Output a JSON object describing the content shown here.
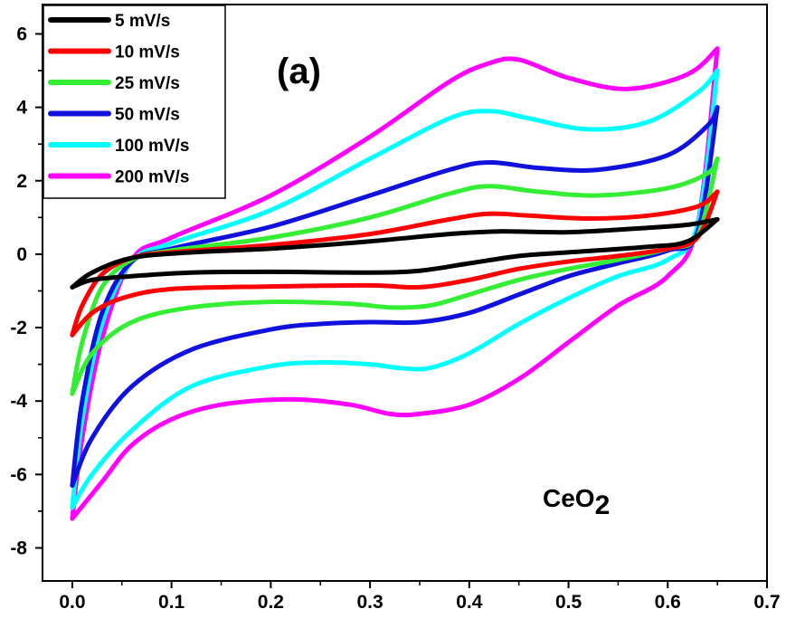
{
  "chart_data": {
    "type": "line",
    "title": "",
    "xlabel": "",
    "ylabel": "",
    "xlim": [
      -0.03,
      0.7
    ],
    "ylim": [
      -8.9,
      6.8
    ],
    "xticks": [
      "0.0",
      "0.1",
      "0.2",
      "0.3",
      "0.4",
      "0.5",
      "0.6",
      "0.7"
    ],
    "yticks": [
      "6",
      "4",
      "2",
      "0",
      "-2",
      "-4",
      "-6",
      "-8"
    ],
    "legend_position": "top-left",
    "grid": false,
    "annotations": [
      {
        "text": "(a)"
      },
      {
        "text": "CeO",
        "subscript": "2"
      }
    ],
    "series": [
      {
        "name": "5 mV/s",
        "color": "#000000",
        "anodic": {
          "x": [
            0.0,
            0.02,
            0.06,
            0.12,
            0.2,
            0.3,
            0.38,
            0.43,
            0.5,
            0.58,
            0.62,
            0.65
          ],
          "y": [
            -0.9,
            -0.5,
            -0.1,
            0.05,
            0.15,
            0.35,
            0.55,
            0.62,
            0.6,
            0.72,
            0.8,
            0.95
          ]
        },
        "cathodic": {
          "x": [
            0.65,
            0.62,
            0.58,
            0.5,
            0.45,
            0.4,
            0.35,
            0.3,
            0.2,
            0.12,
            0.06,
            0.02,
            0.0
          ],
          "y": [
            0.95,
            0.35,
            0.2,
            0.05,
            -0.05,
            -0.25,
            -0.45,
            -0.5,
            -0.48,
            -0.5,
            -0.6,
            -0.7,
            -0.9
          ]
        }
      },
      {
        "name": "10 mV/s",
        "color": "#ff0000",
        "anodic": {
          "x": [
            0.0,
            0.01,
            0.03,
            0.06,
            0.1,
            0.2,
            0.3,
            0.38,
            0.42,
            0.46,
            0.52,
            0.58,
            0.63,
            0.65
          ],
          "y": [
            -2.2,
            -1.4,
            -0.55,
            -0.1,
            0.05,
            0.25,
            0.55,
            0.95,
            1.1,
            1.05,
            0.97,
            1.05,
            1.3,
            1.7
          ]
        },
        "cathodic": {
          "x": [
            0.65,
            0.63,
            0.6,
            0.55,
            0.5,
            0.45,
            0.4,
            0.35,
            0.3,
            0.2,
            0.1,
            0.05,
            0.02,
            0.0
          ],
          "y": [
            1.7,
            0.45,
            0.15,
            -0.05,
            -0.2,
            -0.4,
            -0.7,
            -0.9,
            -0.85,
            -0.88,
            -0.95,
            -1.2,
            -1.6,
            -2.2
          ]
        }
      },
      {
        "name": "25 mV/s",
        "color": "#33ee33",
        "anodic": {
          "x": [
            0.0,
            0.01,
            0.03,
            0.06,
            0.1,
            0.2,
            0.3,
            0.38,
            0.42,
            0.47,
            0.53,
            0.6,
            0.64,
            0.65
          ],
          "y": [
            -3.8,
            -2.4,
            -0.9,
            -0.15,
            0.1,
            0.45,
            1.0,
            1.65,
            1.85,
            1.7,
            1.6,
            1.8,
            2.2,
            2.6
          ]
        },
        "cathodic": {
          "x": [
            0.65,
            0.63,
            0.6,
            0.55,
            0.5,
            0.45,
            0.4,
            0.36,
            0.32,
            0.28,
            0.2,
            0.12,
            0.06,
            0.02,
            0.0
          ],
          "y": [
            2.6,
            0.5,
            0.15,
            -0.15,
            -0.4,
            -0.7,
            -1.1,
            -1.4,
            -1.45,
            -1.35,
            -1.3,
            -1.45,
            -1.85,
            -2.7,
            -3.8
          ]
        }
      },
      {
        "name": "50 mV/s",
        "color": "#1111dd",
        "anodic": {
          "x": [
            0.0,
            0.01,
            0.03,
            0.06,
            0.1,
            0.2,
            0.3,
            0.38,
            0.42,
            0.47,
            0.53,
            0.6,
            0.64,
            0.65
          ],
          "y": [
            -6.3,
            -4.0,
            -1.6,
            -0.2,
            0.15,
            0.75,
            1.6,
            2.3,
            2.5,
            2.35,
            2.3,
            2.7,
            3.5,
            4.0
          ]
        },
        "cathodic": {
          "x": [
            0.65,
            0.63,
            0.6,
            0.55,
            0.5,
            0.45,
            0.4,
            0.35,
            0.3,
            0.25,
            0.2,
            0.12,
            0.06,
            0.02,
            0.0
          ],
          "y": [
            4.0,
            0.6,
            0.1,
            -0.25,
            -0.6,
            -1.1,
            -1.6,
            -1.85,
            -1.85,
            -1.9,
            -2.05,
            -2.6,
            -3.6,
            -5.0,
            -6.3
          ]
        }
      },
      {
        "name": "100 mV/s",
        "color": "#00ffff",
        "anodic": {
          "x": [
            0.0,
            0.01,
            0.03,
            0.06,
            0.1,
            0.2,
            0.3,
            0.38,
            0.42,
            0.46,
            0.52,
            0.58,
            0.63,
            0.65
          ],
          "y": [
            -6.9,
            -4.5,
            -1.9,
            -0.2,
            0.3,
            1.2,
            2.6,
            3.7,
            3.9,
            3.7,
            3.4,
            3.6,
            4.4,
            5.0
          ]
        },
        "cathodic": {
          "x": [
            0.65,
            0.63,
            0.6,
            0.55,
            0.5,
            0.45,
            0.4,
            0.36,
            0.33,
            0.3,
            0.25,
            0.2,
            0.12,
            0.06,
            0.02,
            0.0
          ],
          "y": [
            5.0,
            0.8,
            -0.15,
            -0.6,
            -1.2,
            -1.9,
            -2.7,
            -3.1,
            -3.1,
            -3.0,
            -2.95,
            -3.05,
            -3.6,
            -4.8,
            -6.0,
            -6.9
          ]
        }
      },
      {
        "name": "200 mV/s",
        "color": "#ff00ff",
        "anodic": {
          "x": [
            0.0,
            0.01,
            0.03,
            0.06,
            0.1,
            0.2,
            0.3,
            0.38,
            0.42,
            0.45,
            0.5,
            0.56,
            0.62,
            0.65
          ],
          "y": [
            -7.2,
            -5.0,
            -2.3,
            -0.15,
            0.45,
            1.6,
            3.2,
            4.7,
            5.2,
            5.3,
            4.8,
            4.5,
            4.9,
            5.6
          ]
        },
        "cathodic": {
          "x": [
            0.65,
            0.63,
            0.6,
            0.55,
            0.5,
            0.45,
            0.4,
            0.35,
            0.32,
            0.28,
            0.22,
            0.15,
            0.1,
            0.06,
            0.03,
            0.0
          ],
          "y": [
            5.6,
            0.8,
            -0.6,
            -1.4,
            -2.4,
            -3.4,
            -4.1,
            -4.35,
            -4.35,
            -4.1,
            -3.95,
            -4.1,
            -4.5,
            -5.2,
            -6.2,
            -7.2
          ]
        }
      }
    ]
  }
}
